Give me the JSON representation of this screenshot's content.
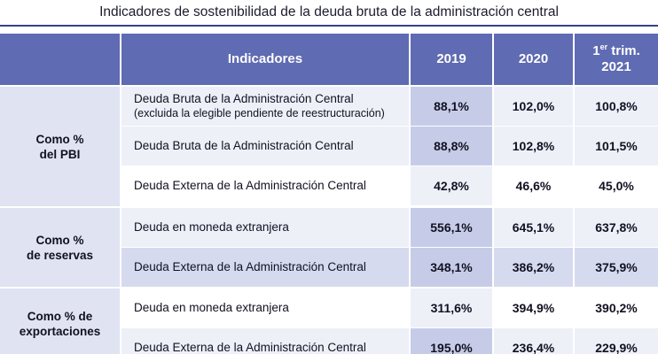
{
  "title": "Indicadores de sostenibilidad de la deuda bruta de la administración central",
  "header": {
    "indicadores": "Indicadores",
    "y2019": "2019",
    "y2020": "2020",
    "q_prefix": "1",
    "q_sup": "er",
    "q_word": "trim.",
    "q_year": "2021"
  },
  "groups": [
    {
      "label_line1": "Como %",
      "label_line2": "del PBI",
      "rows": [
        {
          "indicator": "Deuda Bruta de la Administración Central",
          "note": "(excluida la elegible pendiente de reestructuración)",
          "v2019": "88,1%",
          "v2020": "102,0%",
          "v2021": "100,8%"
        },
        {
          "indicator": "Deuda Bruta de la Administración Central",
          "note": "",
          "v2019": "88,8%",
          "v2020": "102,8%",
          "v2021": "101,5%"
        },
        {
          "indicator": "Deuda Externa de la Administración Central",
          "note": "",
          "v2019": "42,8%",
          "v2020": "46,6%",
          "v2021": "45,0%"
        }
      ]
    },
    {
      "label_line1": "Como %",
      "label_line2": "de reservas",
      "rows": [
        {
          "indicator": "Deuda en moneda extranjera",
          "note": "",
          "v2019": "556,1%",
          "v2020": "645,1%",
          "v2021": "637,8%"
        },
        {
          "indicator": "Deuda Externa de la Administración Central",
          "note": "",
          "v2019": "348,1%",
          "v2020": "386,2%",
          "v2021": "375,9%"
        }
      ]
    },
    {
      "label_line1": "Como % de",
      "label_line2": "exportaciones",
      "rows": [
        {
          "indicator": "Deuda en moneda extranjera",
          "note": "",
          "v2019": "311,6%",
          "v2020": "394,9%",
          "v2021": "390,2%"
        },
        {
          "indicator": "Deuda Externa de la Administración Central",
          "note": "",
          "v2019": "195,0%",
          "v2020": "236,4%",
          "v2021": "229,9%"
        }
      ]
    }
  ]
}
